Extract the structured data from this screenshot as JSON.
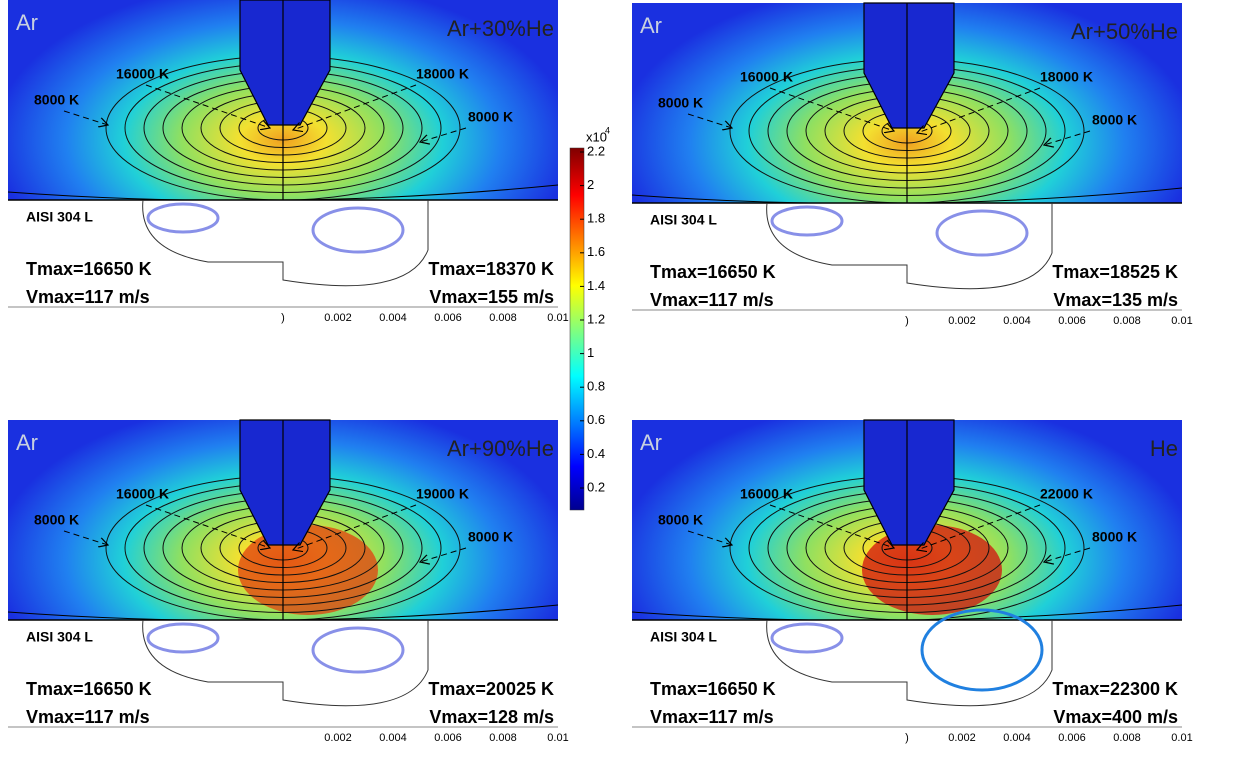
{
  "colorbar": {
    "exponent_base": "x10",
    "exponent": "4",
    "ticks": [
      "2.2",
      "2",
      "1.8",
      "1.6",
      "1.4",
      "1.2",
      "1",
      "0.8",
      "0.6",
      "0.4",
      "0.2"
    ]
  },
  "panels": [
    {
      "left_gas": "Ar",
      "right_gas": "Ar+30%He",
      "annotations": [
        "16000 K",
        "18000 K",
        "8000 K",
        "8000 K"
      ],
      "material": "AISI 304 L",
      "left_stats": [
        "Tmax=16650 K",
        "Vmax=117 m/s"
      ],
      "right_stats": [
        "Tmax=18370 K",
        "Vmax=155 m/s"
      ],
      "x_ticks": [
        ")",
        "0.002",
        "0.004",
        "0.006",
        "0.008",
        "0.01"
      ]
    },
    {
      "left_gas": "Ar",
      "right_gas": "Ar+50%He",
      "annotations": [
        "16000 K",
        "18000 K",
        "8000 K",
        "8000 K"
      ],
      "material": "AISI 304 L",
      "left_stats": [
        "Tmax=16650 K",
        "Vmax=117 m/s"
      ],
      "right_stats": [
        "Tmax=18525 K",
        "Vmax=135 m/s"
      ],
      "x_ticks": [
        ")",
        "0.002",
        "0.004",
        "0.006",
        "0.008",
        "0.01"
      ]
    },
    {
      "left_gas": "Ar",
      "right_gas": "Ar+90%He",
      "annotations": [
        "16000 K",
        "19000 K",
        "8000 K",
        "8000 K"
      ],
      "material": "AISI 304 L",
      "left_stats": [
        "Tmax=16650 K",
        "Vmax=117 m/s"
      ],
      "right_stats": [
        "Tmax=20025 K",
        "Vmax=128 m/s"
      ],
      "x_ticks": [
        "0.002",
        "0.004",
        "0.006",
        "0.008",
        "0.01"
      ]
    },
    {
      "left_gas": "Ar",
      "right_gas": "He",
      "annotations": [
        "16000 K",
        "22000 K",
        "8000 K",
        "8000 K"
      ],
      "material": "AISI 304 L",
      "left_stats": [
        "Tmax=16650 K",
        "Vmax=117 m/s"
      ],
      "right_stats": [
        "Tmax=22300 K",
        "Vmax=400 m/s"
      ],
      "x_ticks": [
        ")",
        "0.002",
        "0.004",
        "0.006",
        "0.008",
        "0.01"
      ]
    }
  ]
}
